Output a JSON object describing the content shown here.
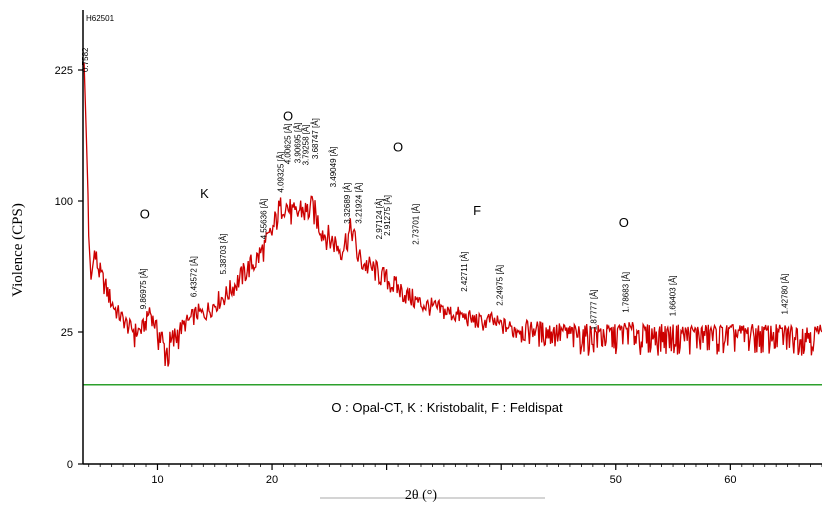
{
  "chart_data": {
    "type": "line",
    "title": "",
    "sample_id": "H62501",
    "xlabel": "2θ (°)",
    "ylabel": "Violence (CPS)",
    "xlim": [
      3.5,
      68
    ],
    "ylim": [
      0,
      260
    ],
    "x_ticks": [
      10,
      20,
      30,
      40,
      50,
      60
    ],
    "x_tick_labels": [
      "10",
      "20",
      "",
      "",
      "50",
      "60"
    ],
    "y_ticks": [
      0,
      25,
      100,
      225
    ],
    "y_tick_labels": [
      "0",
      "25",
      "100",
      "225"
    ],
    "grid": false,
    "baseline_level": 15,
    "legend_text": "O : Opal-CT, K : Kristobalit, F : Feldispat",
    "series": [
      {
        "color": "#cc0000",
        "x": [
          3.6,
          3.8,
          4.0,
          4.2,
          4.5,
          5.0,
          5.5,
          6.0,
          6.5,
          7.0,
          7.5,
          8.0,
          8.5,
          9.0,
          9.3,
          9.6,
          10.0,
          10.5,
          11.0,
          11.5,
          12.0,
          12.5,
          13.0,
          13.5,
          14.0,
          14.5,
          15.0,
          15.5,
          16.0,
          16.5,
          17.0,
          17.5,
          18.0,
          18.5,
          19.0,
          19.5,
          20.0,
          20.5,
          21.0,
          21.5,
          22.0,
          22.5,
          23.0,
          23.5,
          24.0,
          24.5,
          25.0,
          25.5,
          26.0,
          26.5,
          27.0,
          27.5,
          28.0,
          28.5,
          29.0,
          29.5,
          30.0,
          30.5,
          31.0,
          31.5,
          32.0,
          32.5,
          33.0,
          33.5,
          34.0,
          34.5,
          35.0,
          35.5,
          36.0,
          36.5,
          37.0,
          37.5,
          38.0,
          38.5,
          39.0,
          39.5,
          40.0,
          40.5,
          41.0,
          42.0,
          43.0,
          44.0,
          45.0,
          46.0,
          47.0,
          48.0,
          49.0,
          50.0,
          51.0,
          52.0,
          53.0,
          54.0,
          55.0,
          56.0,
          57.0,
          58.0,
          59.0,
          60.0,
          61.0,
          62.0,
          63.0,
          64.0,
          65.0,
          66.0,
          67.0,
          68.0
        ],
        "y": [
          230,
          160,
          80,
          55,
          70,
          58,
          50,
          42,
          36,
          32,
          28,
          26,
          26,
          30,
          38,
          32,
          26,
          22,
          21,
          24,
          27,
          30,
          33,
          36,
          35,
          38,
          41,
          44,
          46,
          50,
          54,
          58,
          62,
          65,
          70,
          75,
          82,
          92,
          100,
          95,
          90,
          96,
          93,
          97,
          88,
          82,
          78,
          76,
          72,
          78,
          84,
          68,
          64,
          62,
          60,
          57,
          55,
          52,
          50,
          47,
          45,
          43,
          41,
          40,
          39,
          38,
          37,
          36,
          35,
          34,
          33,
          32,
          31,
          30,
          32,
          30,
          29,
          28,
          27,
          27,
          27,
          26,
          26,
          25,
          25,
          25,
          25,
          25,
          27,
          25,
          25,
          25,
          25,
          25,
          25,
          25,
          25,
          25,
          25,
          25,
          25,
          25,
          25,
          25,
          25,
          25
        ]
      }
    ],
    "left_edge_labels": [
      "H62501",
      "0.7582"
    ],
    "peak_labels": [
      {
        "x": 9.0,
        "y": 38,
        "text": "9.86975 [Å]"
      },
      {
        "x": 13.4,
        "y": 45,
        "text": "6.43572 [Å]"
      },
      {
        "x": 16.0,
        "y": 58,
        "text": "5.38703 [Å]"
      },
      {
        "x": 19.5,
        "y": 78,
        "text": "4.55636 [Å]"
      },
      {
        "x": 21.0,
        "y": 108,
        "text": "4.09325 [Å]"
      },
      {
        "x": 21.6,
        "y": 135,
        "text": "4.00625 [Å]"
      },
      {
        "x": 22.5,
        "y": 136,
        "text": "3.90695 [Å]"
      },
      {
        "x": 23.2,
        "y": 134,
        "text": "3.79258 [Å]"
      },
      {
        "x": 24.0,
        "y": 140,
        "text": "3.68747 [Å]"
      },
      {
        "x": 25.6,
        "y": 113,
        "text": "3.49049 [Å]"
      },
      {
        "x": 26.8,
        "y": 87,
        "text": "3.32689 [Å]"
      },
      {
        "x": 27.8,
        "y": 87,
        "text": "3.21924 [Å]"
      },
      {
        "x": 29.6,
        "y": 78,
        "text": "2.97124 [Å]"
      },
      {
        "x": 30.3,
        "y": 80,
        "text": "2.91275 [Å]"
      },
      {
        "x": 32.8,
        "y": 75,
        "text": "2.73701 [Å]"
      },
      {
        "x": 37.0,
        "y": 48,
        "text": "2.42711 [Å]"
      },
      {
        "x": 40.1,
        "y": 40,
        "text": "2.24975 [Å]"
      },
      {
        "x": 48.3,
        "y": 26,
        "text": "1.87777 [Å]"
      },
      {
        "x": 51.1,
        "y": 36,
        "text": "1.78683 [Å]"
      },
      {
        "x": 55.2,
        "y": 34,
        "text": "1.66403 [Å]"
      },
      {
        "x": 65.0,
        "y": 35,
        "text": "1.42780 [Å]"
      }
    ],
    "phase_markers": [
      {
        "x": 8.9,
        "y": 90,
        "text": "O"
      },
      {
        "x": 14.1,
        "y": 103,
        "text": "K"
      },
      {
        "x": 21.4,
        "y": 177,
        "text": "O"
      },
      {
        "x": 31.0,
        "y": 147,
        "text": "O"
      },
      {
        "x": 37.9,
        "y": 92,
        "text": "F"
      },
      {
        "x": 50.7,
        "y": 85,
        "text": "O"
      }
    ]
  }
}
